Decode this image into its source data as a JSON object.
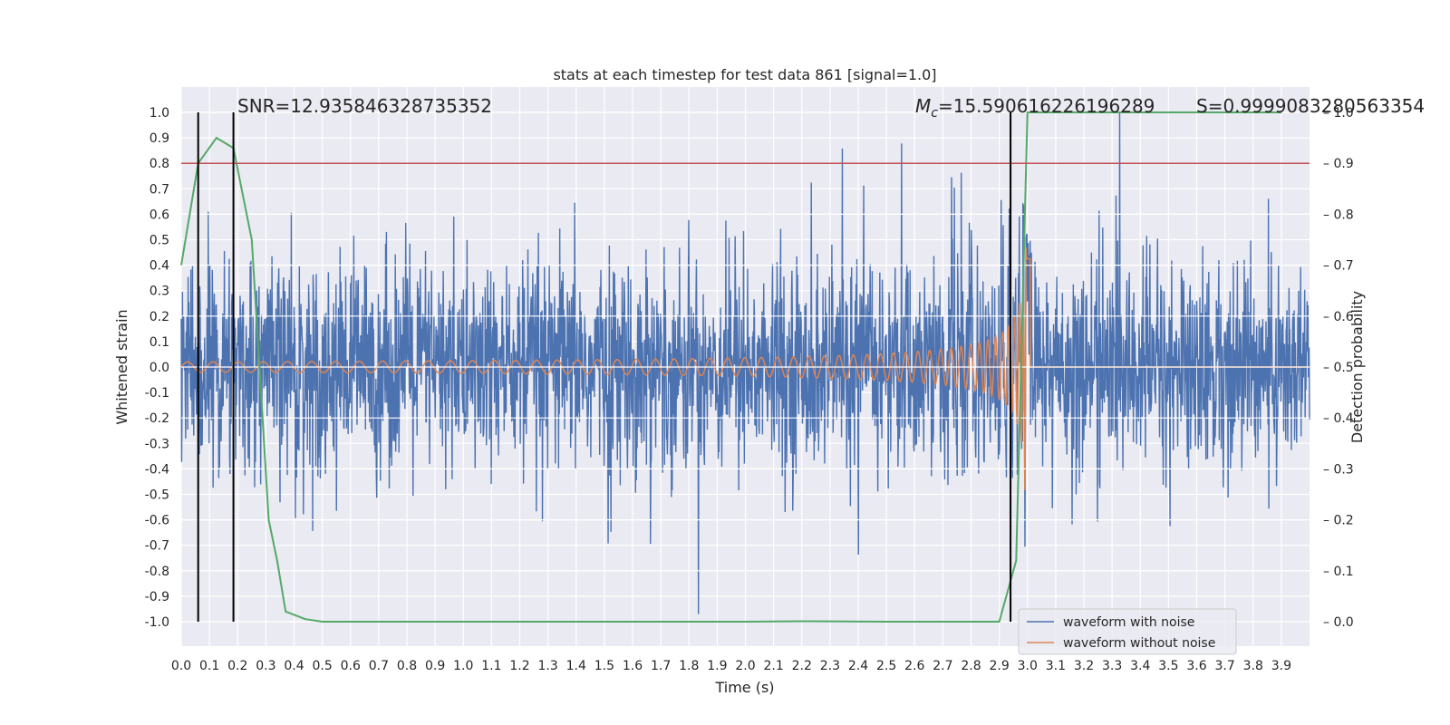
{
  "chart_data": {
    "type": "line",
    "title": "stats at each timestep for test data 861 [signal=1.0]",
    "xlabel": "Time (s)",
    "ylabel": "Whitened strain",
    "y2label": "Detection probability",
    "xlim": [
      0.0,
      4.0
    ],
    "ylim": [
      -1.1,
      1.1
    ],
    "y2lim": [
      -0.05,
      1.05
    ],
    "grid": true,
    "legend_position": "lower-right",
    "x_ticks": [
      "0.0",
      "0.1",
      "0.2",
      "0.3",
      "0.4",
      "0.5",
      "0.6",
      "0.7",
      "0.8",
      "0.9",
      "1.0",
      "1.1",
      "1.2",
      "1.3",
      "1.4",
      "1.5",
      "1.6",
      "1.7",
      "1.8",
      "1.9",
      "2.0",
      "2.1",
      "2.2",
      "2.3",
      "2.4",
      "2.5",
      "2.6",
      "2.7",
      "2.8",
      "2.9",
      "3.0",
      "3.1",
      "3.2",
      "3.3",
      "3.4",
      "3.5",
      "3.6",
      "3.7",
      "3.8",
      "3.9"
    ],
    "y_ticks": [
      "1.0",
      "0.9",
      "0.8",
      "0.7",
      "0.6",
      "0.5",
      "0.4",
      "0.3",
      "0.2",
      "0.1",
      "0.0",
      "-0.1",
      "-0.2",
      "-0.3",
      "-0.4",
      "-0.5",
      "-0.6",
      "-0.7",
      "-0.8",
      "-0.9",
      "-1.0"
    ],
    "y2_ticks": [
      "1.0",
      "0.9",
      "0.8",
      "0.7",
      "0.6",
      "0.5",
      "0.4",
      "0.3",
      "0.2",
      "0.1",
      "0.0"
    ],
    "annotations": {
      "snr": "SNR=12.935846328735352",
      "mc_symbol": "M",
      "mc_sub": "c",
      "mc_value": "=15.590616226196289",
      "s": "S=0.9999083280563354"
    },
    "threshold": {
      "axis": "right",
      "value": 0.9,
      "color": "#c44e52"
    },
    "vertical_lines": [
      0.06,
      0.185,
      2.94
    ],
    "series": [
      {
        "name": "waveform with noise",
        "color": "#4c72b0",
        "axis": "left",
        "kind": "noisy-strain",
        "approx_amplitude": 0.45,
        "peak_max": 1.0,
        "peak_min": -0.97
      },
      {
        "name": "waveform without noise",
        "color": "#dd8452",
        "axis": "left",
        "kind": "chirp",
        "merger_time": 3.0,
        "peak_amplitude": 0.52
      },
      {
        "color": "#55a868",
        "axis": "right",
        "kind": "probability",
        "x": [
          0.0,
          0.06,
          0.125,
          0.185,
          0.25,
          0.31,
          0.34,
          0.37,
          0.44,
          0.5,
          0.6,
          1.0,
          2.0,
          2.2,
          2.5,
          2.8,
          2.9,
          2.96,
          3.0,
          3.9
        ],
        "y": [
          0.7,
          0.9,
          0.95,
          0.93,
          0.75,
          0.2,
          0.12,
          0.02,
          0.005,
          0.0,
          0.0,
          0.0,
          0.0,
          0.001,
          0.0,
          0.0,
          0.0,
          0.12,
          1.0,
          1.0
        ]
      }
    ]
  }
}
